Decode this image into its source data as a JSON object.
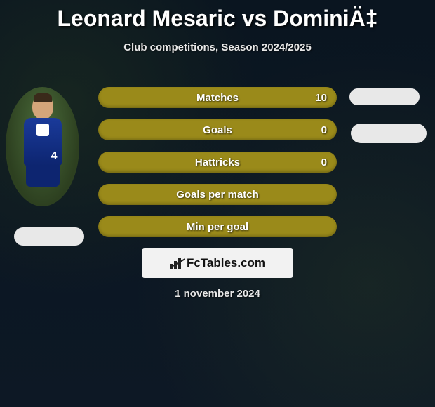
{
  "title": "Leonard Mesaric vs DominiÄ‡",
  "subtitle": "Club competitions, Season 2024/2025",
  "date": "1 november 2024",
  "brand": "FcTables.com",
  "player_number": "4",
  "colors": {
    "bar": "#9a8a1a",
    "background": "#0a1520",
    "pill": "#e8e8e8",
    "text": "#ffffff",
    "brand_box": "#f2f2f2",
    "jersey": "#1a3a9a"
  },
  "stats": [
    {
      "label": "Matches",
      "value": "10"
    },
    {
      "label": "Goals",
      "value": "0"
    },
    {
      "label": "Hattricks",
      "value": "0"
    },
    {
      "label": "Goals per match",
      "value": ""
    },
    {
      "label": "Min per goal",
      "value": ""
    }
  ]
}
